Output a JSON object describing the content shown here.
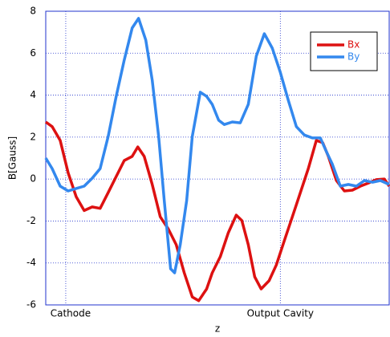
{
  "chart_data": {
    "type": "line",
    "x_label": "z",
    "y_label": "B[Gauss]",
    "xlim": [
      0,
      429
    ],
    "ylim": [
      -6,
      8
    ],
    "xticks": [
      {
        "value": 25,
        "label": "Cathode"
      },
      {
        "value": 293,
        "label": "Output Cavity"
      }
    ],
    "yticks": [
      -6,
      -4,
      -2,
      0,
      2,
      4,
      6,
      8
    ],
    "grid": true,
    "legend": "upper right",
    "series": [
      {
        "name": "Bx",
        "color": "#dd1111",
        "x": [
          0,
          8,
          18,
          28,
          38,
          48,
          58,
          68,
          78,
          88,
          98,
          108,
          115,
          123,
          133,
          143,
          153,
          163,
          173,
          183,
          191,
          201,
          208,
          218,
          228,
          238,
          245,
          253,
          261,
          269,
          279,
          288,
          298,
          308,
          318,
          328,
          338,
          346,
          353,
          363,
          373,
          383,
          393,
          403,
          413,
          423,
          429
        ],
        "values": [
          2.72,
          2.5,
          1.84,
          0.3,
          -0.84,
          -1.5,
          -1.33,
          -1.4,
          -0.65,
          0.12,
          0.88,
          1.08,
          1.53,
          1.08,
          -0.26,
          -1.8,
          -2.37,
          -3.13,
          -4.47,
          -5.62,
          -5.8,
          -5.24,
          -4.47,
          -3.7,
          -2.56,
          -1.72,
          -1.98,
          -3.13,
          -4.66,
          -5.24,
          -4.85,
          -4.1,
          -2.94,
          -1.8,
          -0.65,
          0.5,
          1.84,
          1.73,
          1.08,
          -0.07,
          -0.57,
          -0.53,
          -0.34,
          -0.19,
          -0.03,
          0.0,
          -0.34
        ]
      },
      {
        "name": "By",
        "color": "#3388ee",
        "x": [
          0,
          8,
          18,
          28,
          38,
          48,
          58,
          68,
          78,
          88,
          98,
          108,
          116,
          125,
          133,
          141,
          148,
          156,
          161,
          168,
          176,
          183,
          193,
          201,
          208,
          216,
          223,
          233,
          243,
          253,
          263,
          273,
          283,
          293,
          303,
          313,
          323,
          333,
          343,
          351,
          358,
          368,
          378,
          388,
          398,
          408,
          418,
          429
        ],
        "values": [
          1.0,
          0.5,
          -0.34,
          -0.57,
          -0.45,
          -0.34,
          0.04,
          0.5,
          2.03,
          3.94,
          5.67,
          7.2,
          7.66,
          6.62,
          4.71,
          2.03,
          -1.03,
          -4.28,
          -4.47,
          -3.13,
          -1.03,
          2.03,
          4.14,
          3.94,
          3.56,
          2.8,
          2.6,
          2.72,
          2.68,
          3.56,
          5.86,
          6.93,
          6.24,
          5.09,
          3.75,
          2.5,
          2.1,
          1.96,
          1.96,
          1.27,
          0.7,
          -0.34,
          -0.26,
          -0.34,
          -0.07,
          -0.15,
          -0.07,
          -0.26
        ]
      }
    ]
  }
}
